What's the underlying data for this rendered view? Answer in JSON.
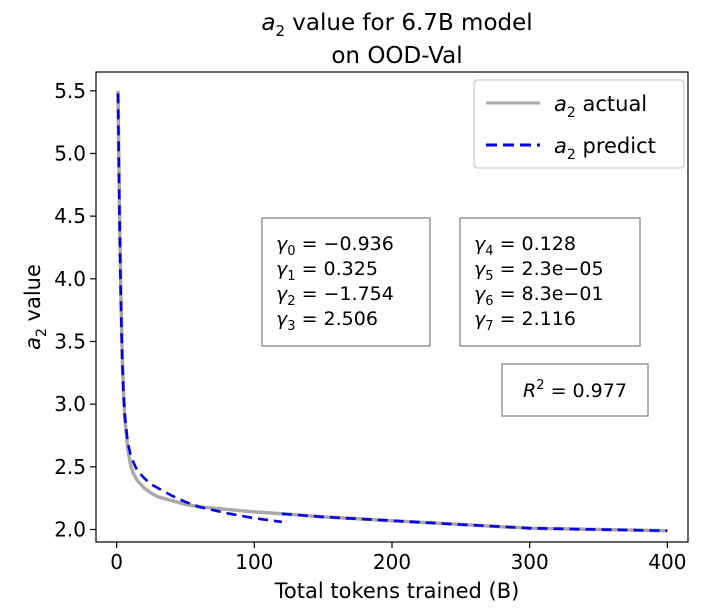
{
  "chart_data": {
    "type": "line",
    "title_line1": "value for 6.7B model",
    "title_line2": "on OOD-Val",
    "title_symbol": "a",
    "title_symbol_sub": "2",
    "xlabel": "Total tokens trained (B)",
    "ylabel_symbol": "a",
    "ylabel_symbol_sub": "2",
    "ylabel_rest": " value",
    "xlim": [
      -15,
      415
    ],
    "ylim": [
      1.9,
      5.65
    ],
    "xticks": [
      0,
      100,
      200,
      300,
      400
    ],
    "xtick_labels": [
      "0",
      "100",
      "200",
      "300",
      "400"
    ],
    "yticks": [
      2.0,
      2.5,
      3.0,
      3.5,
      4.0,
      4.5,
      5.0,
      5.5
    ],
    "ytick_labels": [
      "2.0",
      "2.5",
      "3.0",
      "3.5",
      "4.0",
      "4.5",
      "5.0",
      "5.5"
    ],
    "legend_position": "top-right",
    "series": [
      {
        "name": "actual",
        "legend_symbol": "a",
        "legend_sub": "2",
        "color": "#a9a9a9",
        "style": "solid",
        "x": [
          1,
          2,
          3,
          4,
          5,
          6,
          8,
          10,
          12,
          15,
          20,
          25,
          30,
          40,
          50,
          60,
          80,
          100,
          120,
          150,
          200,
          250,
          300,
          350,
          400
        ],
        "y": [
          5.5,
          4.6,
          3.9,
          3.4,
          3.1,
          2.88,
          2.65,
          2.52,
          2.45,
          2.39,
          2.33,
          2.29,
          2.26,
          2.23,
          2.2,
          2.18,
          2.16,
          2.14,
          2.125,
          2.1,
          2.07,
          2.04,
          2.01,
          2.0,
          1.99
        ]
      },
      {
        "name": "predict",
        "legend_symbol": "a",
        "legend_sub": "2",
        "color": "#0000ee",
        "style": "dashed",
        "segments": [
          {
            "x": [
              1,
              2,
              3,
              4,
              5,
              6,
              8,
              10,
              12,
              15,
              20,
              25,
              30,
              40,
              50,
              60,
              80,
              100,
              120
            ],
            "y": [
              5.48,
              4.55,
              3.85,
              3.35,
              3.08,
              2.9,
              2.7,
              2.6,
              2.54,
              2.47,
              2.41,
              2.36,
              2.33,
              2.27,
              2.22,
              2.18,
              2.13,
              2.09,
              2.06
            ]
          },
          {
            "x": [
              120,
              150,
              200,
              250,
              300,
              350,
              400
            ],
            "y": [
              2.125,
              2.1,
              2.07,
              2.04,
              2.01,
              2.0,
              1.99
            ]
          }
        ]
      }
    ],
    "annotations": {
      "gamma_left": [
        {
          "sub": "0",
          "value": "−0.936"
        },
        {
          "sub": "1",
          "value": "0.325"
        },
        {
          "sub": "2",
          "value": "−1.754"
        },
        {
          "sub": "3",
          "value": "2.506"
        }
      ],
      "gamma_right": [
        {
          "sub": "4",
          "value": "0.128"
        },
        {
          "sub": "5",
          "value": "2.3e−05"
        },
        {
          "sub": "6",
          "value": "8.3e−01"
        },
        {
          "sub": "7",
          "value": "2.116"
        }
      ],
      "r2_symbol": "R",
      "r2_sup": "2",
      "r2_value": "0.977"
    }
  }
}
